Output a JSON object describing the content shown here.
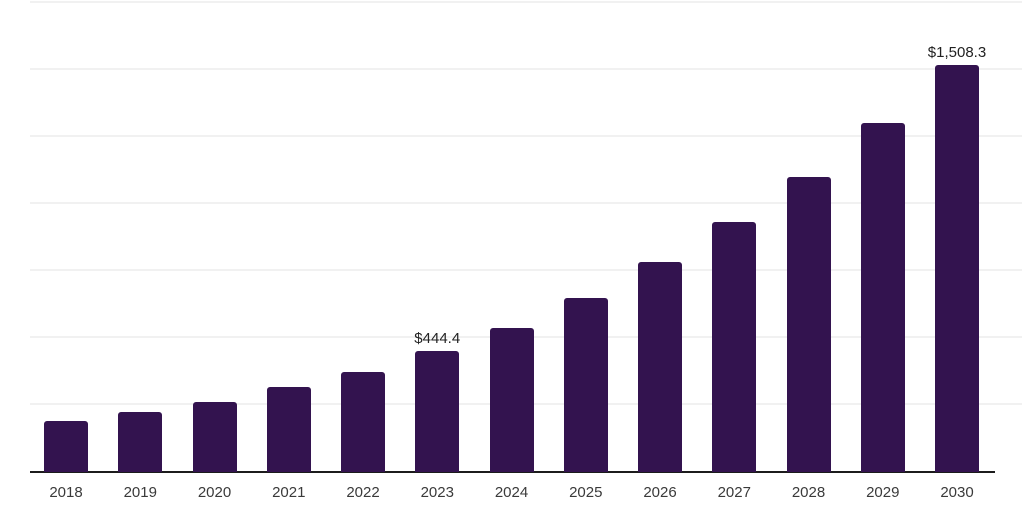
{
  "chart_data": {
    "type": "bar",
    "title": "",
    "xlabel": "",
    "ylabel": "",
    "categories": [
      "2018",
      "2019",
      "2020",
      "2021",
      "2022",
      "2023",
      "2024",
      "2025",
      "2026",
      "2027",
      "2028",
      "2029",
      "2030"
    ],
    "values": [
      182,
      218,
      255,
      309,
      367,
      444.4,
      529,
      640,
      774,
      923,
      1091,
      1292,
      1508.3
    ],
    "data_labels": {
      "2023": "$444.4",
      "2030": "$1,508.3"
    },
    "ylim": [
      0,
      1750
    ],
    "gridlines": {
      "visible": true,
      "step": 250
    },
    "legend": "none",
    "y_axis_tick_labels": "none",
    "colors": {
      "bar": "#33134f",
      "background": "#ffffff",
      "gridline": "#f1f1f1",
      "axis_line": "#1c1c1c",
      "value_label_text": "#222222",
      "tick_label_text": "#3a3a3a"
    }
  }
}
